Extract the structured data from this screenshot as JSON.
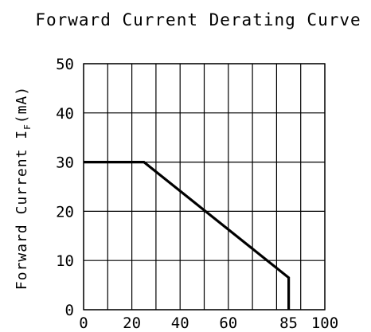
{
  "chart_data": {
    "type": "line",
    "title": "Forward Current Derating Curve",
    "ylabel_main": "Forward Current I",
    "ylabel_sub": "F",
    "ylabel_unit": "(mA)",
    "xlabel": "",
    "xlim": [
      0,
      100
    ],
    "ylim": [
      0,
      50
    ],
    "x_tick_labels": [
      "0",
      "20",
      "40",
      "60",
      "85",
      "100"
    ],
    "x_tick_values": [
      0,
      20,
      40,
      60,
      85,
      100
    ],
    "y_tick_labels": [
      "0",
      "10",
      "20",
      "30",
      "40",
      "50"
    ],
    "y_tick_values": [
      0,
      10,
      20,
      30,
      40,
      50
    ],
    "x_grid": [
      0,
      10,
      20,
      30,
      40,
      50,
      60,
      70,
      80,
      90,
      100
    ],
    "y_grid": [
      0,
      10,
      20,
      30,
      40,
      50
    ],
    "grid": true,
    "series": [
      {
        "x": [
          0,
          25,
          85,
          85
        ],
        "y": [
          30,
          30,
          6.5,
          0
        ]
      }
    ]
  }
}
